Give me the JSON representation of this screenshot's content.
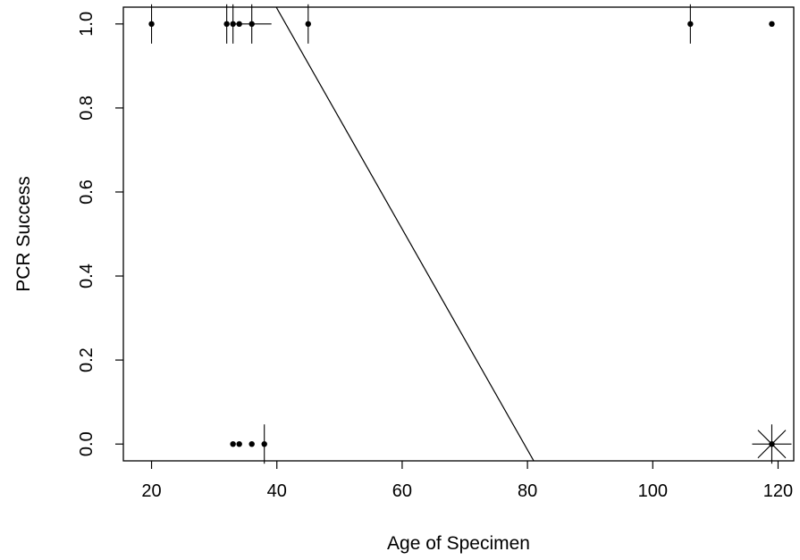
{
  "chart_data": {
    "type": "scatter",
    "xlabel": "Age of Specimen",
    "ylabel": "PCR Success",
    "xlim": [
      15.5,
      122.5
    ],
    "ylim": [
      -0.04,
      1.04
    ],
    "x_ticks": [
      20,
      40,
      60,
      80,
      100,
      120
    ],
    "x_tick_labels": [
      "20",
      "40",
      "60",
      "80",
      "100",
      "120"
    ],
    "y_ticks": [
      0.0,
      0.2,
      0.4,
      0.6,
      0.8,
      1.0
    ],
    "y_tick_labels": [
      "0.0",
      "0.2",
      "0.4",
      "0.6",
      "0.8",
      "1.0"
    ],
    "grid": false,
    "sunflower": {
      "description": "points drawn as sunflower glyphs: dot with one petal per extra observation",
      "points": [
        {
          "x": 20,
          "y": 1,
          "count": 2
        },
        {
          "x": 32,
          "y": 1,
          "count": 2
        },
        {
          "x": 33,
          "y": 1,
          "count": 2
        },
        {
          "x": 34,
          "y": 1,
          "count": 1
        },
        {
          "x": 36,
          "y": 1,
          "count": 4
        },
        {
          "x": 45,
          "y": 1,
          "count": 2
        },
        {
          "x": 106,
          "y": 1,
          "count": 2
        },
        {
          "x": 119,
          "y": 1,
          "count": 1
        },
        {
          "x": 33,
          "y": 0,
          "count": 1
        },
        {
          "x": 34,
          "y": 0,
          "count": 1
        },
        {
          "x": 36,
          "y": 0,
          "count": 1
        },
        {
          "x": 38,
          "y": 0,
          "count": 2
        },
        {
          "x": 119,
          "y": 0,
          "count": 8
        }
      ]
    },
    "fit_line": {
      "type": "linear",
      "points": [
        {
          "x": 38,
          "y": 1.09
        },
        {
          "x": 81,
          "y": -0.04
        }
      ]
    }
  }
}
